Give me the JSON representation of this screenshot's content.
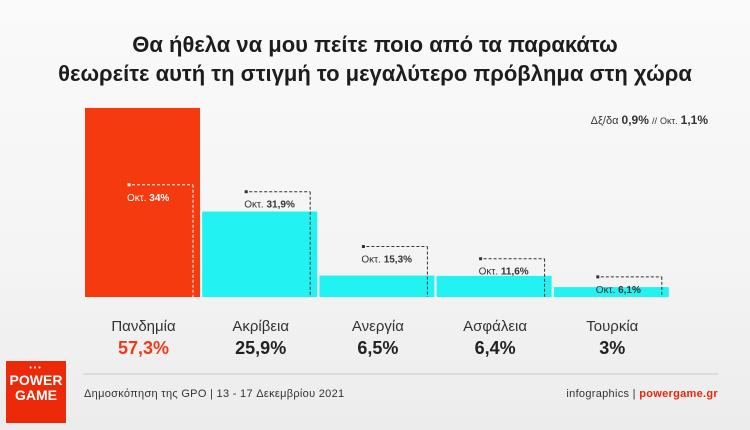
{
  "title_line1": "Θα ήθελα να μου πείτε ποιο από τα παρακάτω",
  "title_line2": "θεωρείτε αυτή τη στιγμή το μεγαλύτερο πρόβλημα στη χώρα",
  "note": {
    "label": "Δξ/δα",
    "value": "0,9%",
    "sep": "//",
    "prev_label": "Οκτ.",
    "prev_value": "1,1%"
  },
  "chart_data": {
    "type": "bar",
    "categories": [
      "Πανδημία",
      "Ακρίβεια",
      "Ανεργία",
      "Ασφάλεια",
      "Τουρκία"
    ],
    "series": [
      {
        "name": "",
        "values": [
          57.3,
          25.9,
          6.5,
          6.4,
          3
        ],
        "labels": [
          "57,3%",
          "25,9%",
          "6,5%",
          "6,4%",
          "3%"
        ]
      },
      {
        "name": "Οκτ.",
        "values": [
          34,
          31.9,
          15.3,
          11.6,
          6.1
        ],
        "labels": [
          "34%",
          "31,9%",
          "15,3%",
          "11,6%",
          "6,1%"
        ]
      }
    ],
    "colors": {
      "highlight": "#f53a10",
      "bar": "#22f2f2"
    },
    "highlight_index": 0,
    "prev_prefix": "Οκτ."
  },
  "footer": {
    "source": "Δημοσκόπηση της GPO | 13 - 17 Δεκεμβρίου 2021",
    "infographics": "infographics |",
    "site": "powergame.gr",
    "logo_text": "POWER GAME"
  }
}
